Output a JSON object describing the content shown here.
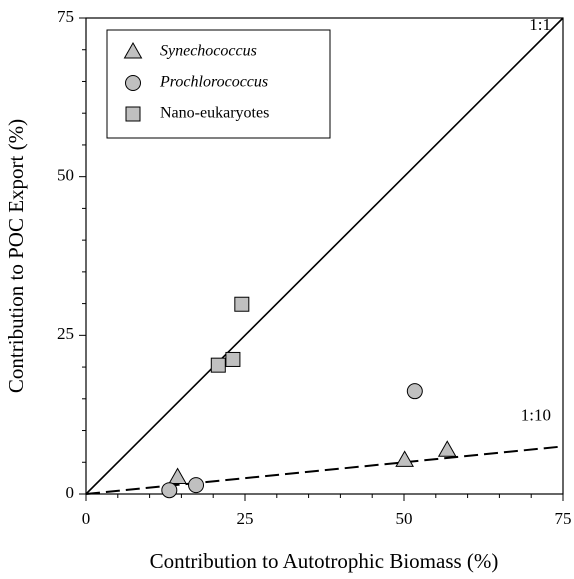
{
  "chart_data": {
    "type": "scatter",
    "x_label": "Contribution to Autotrophic Biomass (%)",
    "y_label": "Contribution to POC Export (%)",
    "xlim": [
      0,
      75
    ],
    "ylim": [
      0,
      75
    ],
    "xticks": [
      0,
      25,
      50,
      75
    ],
    "yticks": [
      0,
      25,
      50,
      75
    ],
    "minor_ticks": [
      5,
      10,
      15,
      20,
      30,
      35,
      40,
      45,
      55,
      60,
      65,
      70
    ],
    "legend": "upper left",
    "series": [
      {
        "name": "Synechococcus",
        "italic": true,
        "marker": "triangle",
        "color": "#c0c0c0",
        "x": [
          14.4,
          50.1,
          56.8
        ],
        "values": [
          2.6,
          5.3,
          6.9
        ]
      },
      {
        "name": "Prochlorococcus",
        "italic": true,
        "marker": "circle",
        "color": "#c0c0c0",
        "x": [
          13.1,
          17.3,
          51.7
        ],
        "values": [
          0.6,
          1.4,
          16.2
        ]
      },
      {
        "name": "Nano-eukaryotes",
        "italic": false,
        "marker": "square",
        "color": "#c0c0c0",
        "x": [
          20.8,
          23.1,
          24.5
        ],
        "values": [
          20.3,
          21.2,
          29.9
        ]
      }
    ],
    "reference_lines": [
      {
        "label": "1:1",
        "slope": 1,
        "dashed": false
      },
      {
        "label": "1:10",
        "slope": 0.1,
        "dashed": true
      }
    ]
  }
}
